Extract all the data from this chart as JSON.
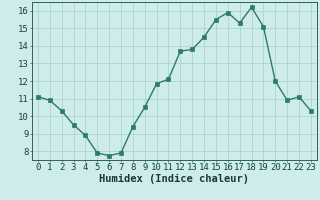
{
  "x": [
    0,
    1,
    2,
    3,
    4,
    5,
    6,
    7,
    8,
    9,
    10,
    11,
    12,
    13,
    14,
    15,
    16,
    17,
    18,
    19,
    20,
    21,
    22,
    23
  ],
  "y": [
    11.1,
    10.9,
    10.3,
    9.5,
    8.9,
    7.9,
    7.75,
    7.9,
    9.4,
    10.5,
    11.85,
    12.1,
    13.7,
    13.8,
    14.5,
    15.5,
    15.9,
    15.3,
    16.2,
    15.1,
    12.0,
    10.9,
    11.1,
    10.3
  ],
  "xlabel": "Humidex (Indice chaleur)",
  "xlim": [
    -0.5,
    23.5
  ],
  "ylim": [
    7.5,
    16.5
  ],
  "yticks": [
    8,
    9,
    10,
    11,
    12,
    13,
    14,
    15,
    16
  ],
  "xticks": [
    0,
    1,
    2,
    3,
    4,
    5,
    6,
    7,
    8,
    9,
    10,
    11,
    12,
    13,
    14,
    15,
    16,
    17,
    18,
    19,
    20,
    21,
    22,
    23
  ],
  "line_color": "#2d7b6b",
  "marker_color": "#2d7b6b",
  "bg_color": "#ceecea",
  "grid_color": "#aed4d0",
  "axis_color": "#2d6060",
  "tick_label_color": "#1a4040",
  "xlabel_color": "#1a3838",
  "font_size_ticks": 6.5,
  "font_size_xlabel": 7.5,
  "line_width": 1.0,
  "marker_size": 2.2
}
